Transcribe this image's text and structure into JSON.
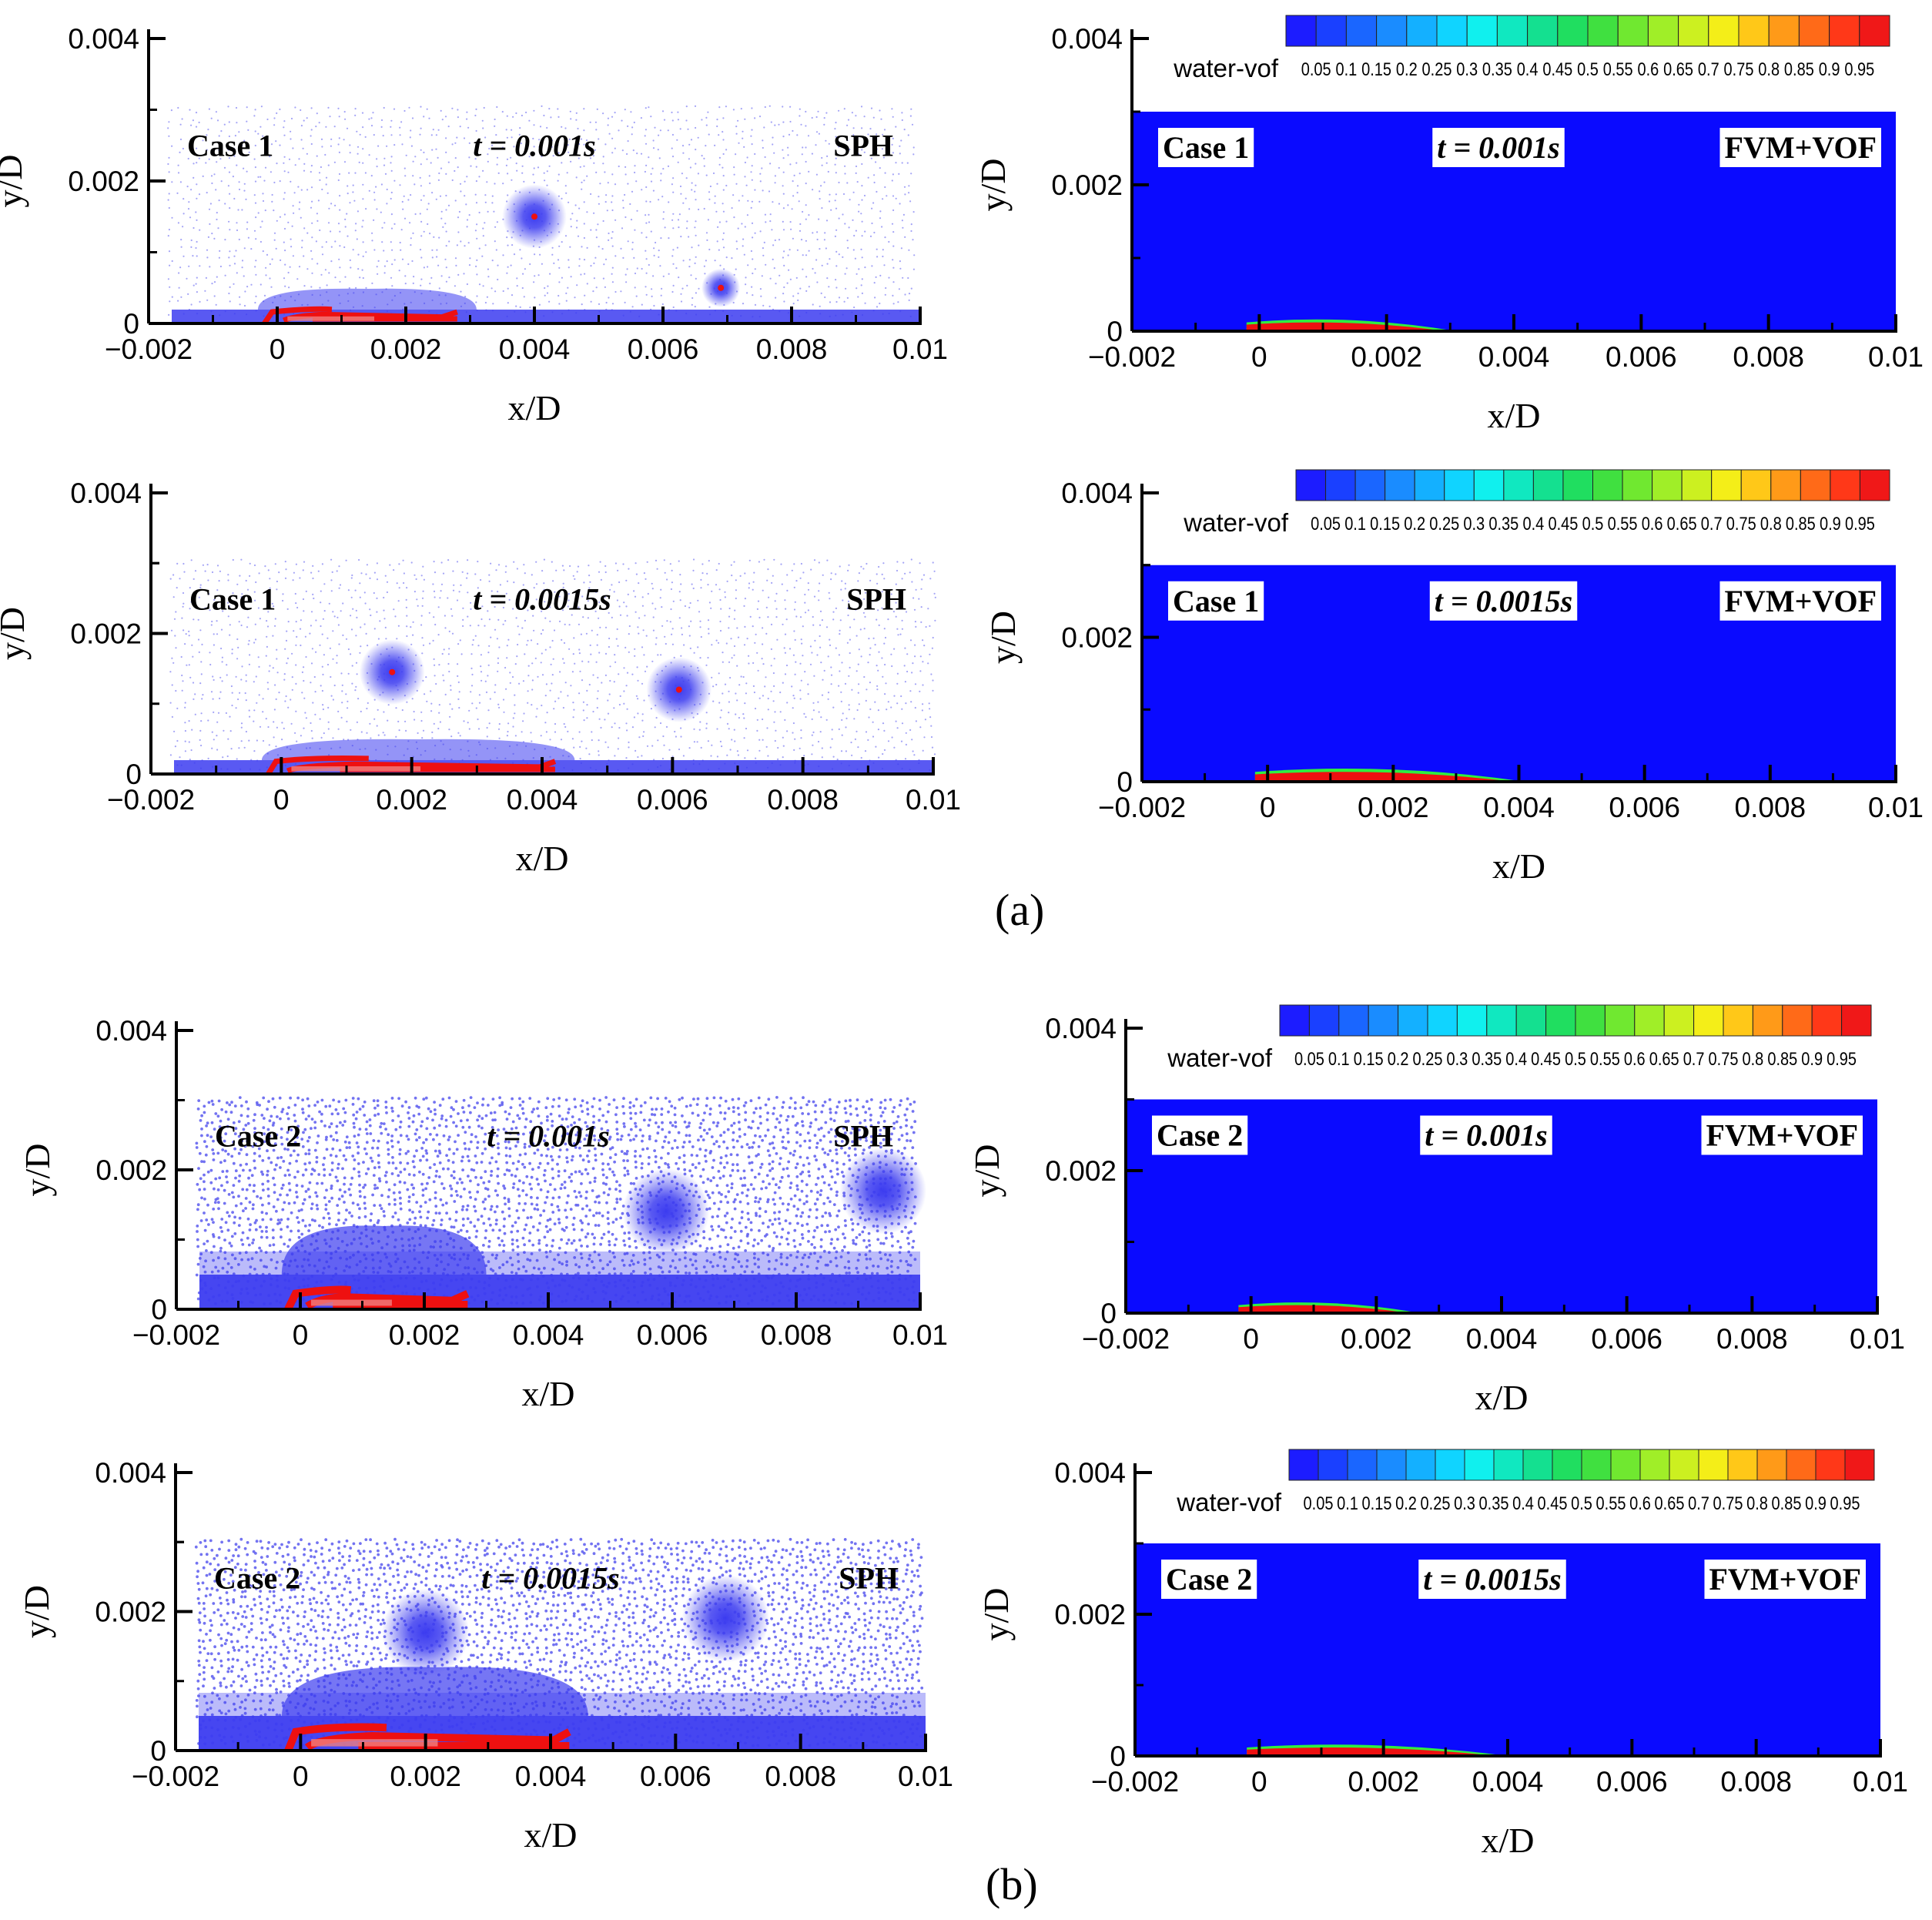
{
  "figure": {
    "part_labels": [
      "(a)",
      "(b)"
    ]
  },
  "colorbar": {
    "label": "water-vof",
    "ticks": [
      "0.05",
      "0.1",
      "0.15",
      "0.2",
      "0.25",
      "0.3",
      "0.35",
      "0.4",
      "0.45",
      "0.5",
      "0.55",
      "0.6",
      "0.65",
      "0.7",
      "0.75",
      "0.8",
      "0.85",
      "0.9",
      "0.95"
    ],
    "colors": [
      "#1c1cff",
      "#1a40ff",
      "#1a66ff",
      "#1a8cff",
      "#14b0ff",
      "#10d4ff",
      "#10f0ee",
      "#10e8c0",
      "#14e090",
      "#20de60",
      "#40e040",
      "#70e830",
      "#a0ee28",
      "#ccf020",
      "#f4ee18",
      "#ffc818",
      "#ff9a18",
      "#ff6a18",
      "#ff3818",
      "#f01818"
    ]
  },
  "colors": {
    "sph_particles": "#5a5aee",
    "sph_dense": "#3c3cf0",
    "vof_blue": "#0a0aff",
    "water_red": "#ee1010"
  },
  "chart_data": [
    {
      "type": "scatter",
      "id": "a-sph-1",
      "method": "SPH",
      "case": "Case 1",
      "time": "t = 0.001s",
      "xlabel": "x/D",
      "ylabel": "y/D",
      "xlim": [
        -0.002,
        0.01
      ],
      "ylim": [
        0,
        0.004
      ],
      "xticks": [
        "−0.002",
        "0",
        "0.002",
        "0.004",
        "0.006",
        "0.008",
        "0.01"
      ],
      "yticks": [
        "0",
        "0.002",
        "0.004"
      ],
      "domain_top": 0.003,
      "bubbles": [
        {
          "x": 0.004,
          "y": 0.0015,
          "r": 0.0005
        },
        {
          "x": 0.0069,
          "y": 0.0005,
          "r": 0.0003
        }
      ],
      "water": {
        "x_start": -0.0002,
        "x_end": 0.0028,
        "height": 0.00018
      }
    },
    {
      "type": "heatmap",
      "id": "a-vof-1",
      "method": "FVM+VOF",
      "case": "Case 1",
      "time": "t = 0.001s",
      "xlabel": "x/D",
      "ylabel": "y/D",
      "xlim": [
        -0.002,
        0.01
      ],
      "ylim": [
        0,
        0.004
      ],
      "xticks": [
        "−0.002",
        "0",
        "0.002",
        "0.004",
        "0.006",
        "0.008",
        "0.01"
      ],
      "yticks": [
        "0",
        "0.002",
        "0.004"
      ],
      "domain_top": 0.003,
      "water": {
        "x_start": -0.0002,
        "x_end": 0.0031,
        "height": 0.00015
      }
    },
    {
      "type": "scatter",
      "id": "a-sph-2",
      "method": "SPH",
      "case": "Case 1",
      "time": "t = 0.0015s",
      "xlabel": "x/D",
      "ylabel": "y/D",
      "xlim": [
        -0.002,
        0.01
      ],
      "ylim": [
        0,
        0.004
      ],
      "xticks": [
        "−0.002",
        "0",
        "0.002",
        "0.004",
        "0.006",
        "0.008",
        "0.01"
      ],
      "yticks": [
        "0",
        "0.002",
        "0.004"
      ],
      "domain_top": 0.003,
      "bubbles": [
        {
          "x": 0.0017,
          "y": 0.00145,
          "r": 0.0005
        },
        {
          "x": 0.0061,
          "y": 0.0012,
          "r": 0.0005
        }
      ],
      "water": {
        "x_start": -0.0002,
        "x_end": 0.0042,
        "height": 0.0002
      }
    },
    {
      "type": "heatmap",
      "id": "a-vof-2",
      "method": "FVM+VOF",
      "case": "Case 1",
      "time": "t = 0.0015s",
      "xlabel": "x/D",
      "ylabel": "y/D",
      "xlim": [
        -0.002,
        0.01
      ],
      "ylim": [
        0,
        0.004
      ],
      "xticks": [
        "−0.002",
        "0",
        "0.002",
        "0.004",
        "0.006",
        "0.008",
        "0.01"
      ],
      "yticks": [
        "0",
        "0.002",
        "0.004"
      ],
      "domain_top": 0.003,
      "water": {
        "x_start": -0.0002,
        "x_end": 0.0041,
        "height": 0.00017
      }
    },
    {
      "type": "scatter",
      "id": "b-sph-1",
      "method": "SPH",
      "case": "Case 2",
      "time": "t = 0.001s",
      "xlabel": "x/D",
      "ylabel": "y/D",
      "xlim": [
        -0.002,
        0.01
      ],
      "ylim": [
        0,
        0.004
      ],
      "xticks": [
        "−0.002",
        "0",
        "0.002",
        "0.004",
        "0.006",
        "0.008",
        "0.01"
      ],
      "yticks": [
        "0",
        "0.002",
        "0.004"
      ],
      "domain_top": 0.003,
      "bubbles": [
        {
          "x": 0.0059,
          "y": 0.0014,
          "r": 0.0007
        },
        {
          "x": 0.0094,
          "y": 0.0017,
          "r": 0.0007
        }
      ],
      "water": {
        "x_start": -0.0002,
        "x_end": 0.0027,
        "height": 0.00025
      }
    },
    {
      "type": "heatmap",
      "id": "b-vof-1",
      "method": "FVM+VOF",
      "case": "Case 2",
      "time": "t = 0.001s",
      "xlabel": "x/D",
      "ylabel": "y/D",
      "xlim": [
        -0.002,
        0.01
      ],
      "ylim": [
        0,
        0.004
      ],
      "xticks": [
        "−0.002",
        "0",
        "0.002",
        "0.004",
        "0.006",
        "0.008",
        "0.01"
      ],
      "yticks": [
        "0",
        "0.002",
        "0.004"
      ],
      "domain_top": 0.003,
      "water": {
        "x_start": -0.0002,
        "x_end": 0.0027,
        "height": 0.00014
      }
    },
    {
      "type": "scatter",
      "id": "b-sph-2",
      "method": "SPH",
      "case": "Case 2",
      "time": "t = 0.0015s",
      "xlabel": "x/D",
      "ylabel": "y/D",
      "xlim": [
        -0.002,
        0.01
      ],
      "ylim": [
        0,
        0.004
      ],
      "xticks": [
        "−0.002",
        "0",
        "0.002",
        "0.004",
        "0.006",
        "0.008",
        "0.01"
      ],
      "yticks": [
        "0",
        "0.002",
        "0.004"
      ],
      "domain_top": 0.003,
      "bubbles": [
        {
          "x": 0.002,
          "y": 0.0017,
          "r": 0.0007
        },
        {
          "x": 0.0068,
          "y": 0.0019,
          "r": 0.0007
        }
      ],
      "water": {
        "x_start": -0.0002,
        "x_end": 0.0043,
        "height": 0.0003
      }
    },
    {
      "type": "heatmap",
      "id": "b-vof-2",
      "method": "FVM+VOF",
      "case": "Case 2",
      "time": "t = 0.0015s",
      "xlabel": "x/D",
      "ylabel": "y/D",
      "xlim": [
        -0.002,
        0.01
      ],
      "ylim": [
        0,
        0.004
      ],
      "xticks": [
        "−0.002",
        "0",
        "0.002",
        "0.004",
        "0.006",
        "0.008",
        "0.01"
      ],
      "yticks": [
        "0",
        "0.002",
        "0.004"
      ],
      "domain_top": 0.003,
      "water": {
        "x_start": -0.0002,
        "x_end": 0.004,
        "height": 0.00015
      }
    }
  ]
}
